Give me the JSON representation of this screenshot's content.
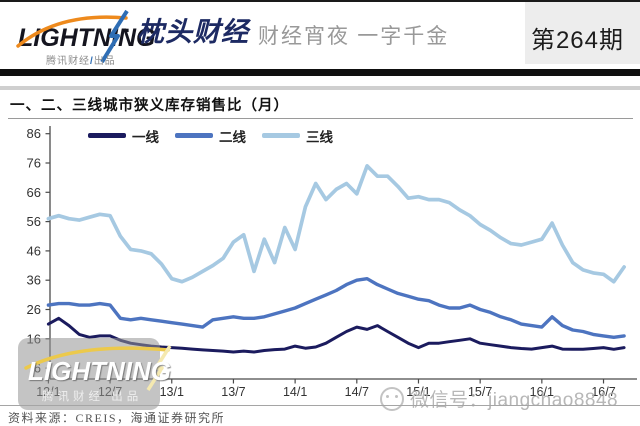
{
  "header": {
    "logo_main": "LIGHTNING",
    "logo_sub_left": "腾讯财经",
    "logo_sub_slash": "/",
    "logo_sub_right": "出品",
    "logo_separator": "·",
    "brand": "枕头财经",
    "tagline": "财经宵夜 一字千金",
    "issue": "第264期"
  },
  "chart": {
    "title": "一、二、三线城市狭义库存销售比（月）"
  },
  "chart_data": {
    "type": "line",
    "title": "一、二、三线城市狭义库存销售比（月）",
    "x_start": "2012/01",
    "x_end": "2016/09",
    "x_tick_labels": [
      "12/1",
      "12/7",
      "13/1",
      "13/7",
      "14/1",
      "14/7",
      "15/1",
      "15/7",
      "16/1",
      "16/7"
    ],
    "y_ticks": [
      86,
      76,
      66,
      56,
      46,
      36,
      26,
      16,
      6
    ],
    "ylim": [
      6,
      86
    ],
    "grid": false,
    "legend_position": "top-left-inside",
    "series": [
      {
        "name": "一线",
        "color": "#1b1b5e",
        "values": [
          21,
          23,
          20.5,
          17.5,
          16.5,
          17,
          17,
          15.5,
          14.5,
          14,
          13.5,
          13.2,
          13,
          12.8,
          12.5,
          12.2,
          12,
          11.8,
          11.5,
          11.8,
          11.5,
          12,
          12.3,
          12.5,
          13.5,
          12.8,
          13.2,
          14.5,
          16.5,
          18.5,
          20,
          19.2,
          20.5,
          18.5,
          16.5,
          14.5,
          13,
          14.5,
          14.5,
          15,
          15.5,
          16,
          14.5,
          14,
          13.5,
          13,
          12.7,
          12.5,
          13,
          13.5,
          12.5,
          12.4,
          12.4,
          12.7,
          13,
          12.4,
          13
        ]
      },
      {
        "name": "二线",
        "color": "#4d74c0",
        "values": [
          27.5,
          28,
          28,
          27.5,
          27.5,
          28,
          27.5,
          23,
          22.5,
          23,
          22.5,
          22,
          21.5,
          21,
          20.5,
          20,
          22.5,
          23,
          23.5,
          23,
          23,
          23.5,
          24.5,
          25.5,
          26.5,
          28,
          29.5,
          31,
          32.5,
          34.5,
          36,
          36.5,
          34.5,
          33,
          31.5,
          30.5,
          29.5,
          29,
          27.5,
          26.5,
          26.5,
          27.5,
          26,
          25,
          23.5,
          22.5,
          21,
          20.5,
          20,
          23.5,
          20.5,
          19,
          18.5,
          17.5,
          17,
          16.5,
          17
        ]
      },
      {
        "name": "三线",
        "color": "#a6c9e2",
        "values": [
          57,
          58,
          57,
          56.5,
          57.5,
          58.5,
          58,
          51,
          46.5,
          46,
          45,
          41.5,
          36.5,
          35.5,
          37,
          39,
          41,
          43.5,
          49,
          51.5,
          39,
          50,
          42,
          54,
          46.5,
          61,
          69,
          63.5,
          67,
          69,
          65.5,
          75,
          71.5,
          71.5,
          68,
          64,
          64.5,
          63.5,
          63.5,
          62.5,
          60,
          58,
          55,
          53,
          50.5,
          48.5,
          48,
          49,
          50,
          55.5,
          48,
          42,
          39.5,
          38.5,
          38,
          35.5,
          40.5
        ]
      }
    ]
  },
  "watermarks": {
    "left_logo": "LIGHTNING",
    "left_sub": "腾讯财经 出品",
    "right_text": "微信号：jiangchao8848"
  },
  "footer": {
    "source": "资料来源：CREIS，海通证券研究所"
  }
}
